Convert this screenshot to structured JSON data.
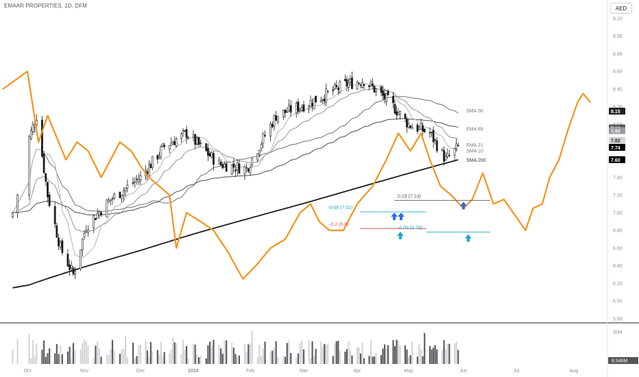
{
  "header": {
    "title": "EMAAR PROPERTIES, 1D, DFM",
    "currency": "AED"
  },
  "volume_scale": {
    "label_top": "50M",
    "label_current": "8.546M"
  },
  "chart_data": {
    "type": "candlestick",
    "symbol": "EMAAR PROPERTIES, 1D, DFM",
    "ylim": [
      5.8,
      9.3
    ],
    "y_ticks": [
      5.8,
      6.0,
      6.2,
      6.4,
      6.6,
      6.8,
      7.0,
      7.2,
      7.4,
      7.6,
      7.8,
      8.0,
      8.2,
      8.4,
      8.6,
      8.8,
      9.0,
      9.2
    ],
    "x_ticks": [
      "Oct",
      "Nov",
      "Dec",
      "2024",
      "Feb",
      "Mar",
      "Apr",
      "May",
      "Jun",
      "Jul",
      "Aug"
    ],
    "price_ohlc_samples": [
      [
        "2023-09-28",
        6.95,
        7.05,
        6.9,
        7.0
      ],
      [
        "2023-10-02",
        7.4,
        7.95,
        7.3,
        7.85
      ],
      [
        "2023-10-06",
        8.0,
        8.3,
        7.9,
        8.1
      ],
      [
        "2023-10-12",
        7.6,
        7.7,
        7.1,
        7.2
      ],
      [
        "2023-10-19",
        6.6,
        6.75,
        6.55,
        6.6
      ],
      [
        "2023-10-26",
        6.4,
        6.5,
        6.22,
        6.3
      ],
      [
        "2023-11-02",
        6.7,
        6.9,
        6.6,
        6.85
      ],
      [
        "2023-11-15",
        7.1,
        7.2,
        7.0,
        7.15
      ],
      [
        "2023-12-01",
        7.2,
        7.45,
        7.1,
        7.4
      ],
      [
        "2023-12-15",
        7.6,
        7.8,
        7.5,
        7.75
      ],
      [
        "2023-12-28",
        7.95,
        8.0,
        7.8,
        7.9
      ],
      [
        "2024-01-15",
        7.6,
        7.7,
        7.5,
        7.55
      ],
      [
        "2024-01-30",
        7.45,
        7.55,
        7.35,
        7.5
      ],
      [
        "2024-02-15",
        8.0,
        8.15,
        7.95,
        8.1
      ],
      [
        "2024-03-05",
        8.2,
        8.3,
        8.1,
        8.25
      ],
      [
        "2024-03-25",
        8.4,
        8.5,
        8.3,
        8.45
      ],
      [
        "2024-04-05",
        8.55,
        8.65,
        8.45,
        8.5
      ],
      [
        "2024-04-20",
        8.3,
        8.38,
        8.2,
        8.25
      ],
      [
        "2024-05-01",
        8.05,
        8.15,
        7.95,
        8.0
      ],
      [
        "2024-05-13",
        7.75,
        8.0,
        7.6,
        7.9
      ],
      [
        "2024-05-22",
        7.9,
        8.05,
        7.55,
        7.6
      ],
      [
        "2024-05-29",
        7.65,
        7.82,
        7.6,
        7.74
      ]
    ],
    "series": [
      {
        "name": "SMA 50",
        "last": 8.15,
        "color": "#7b7b86"
      },
      {
        "name": "EMA 89",
        "last": 7.96,
        "color": "#5a5a62"
      },
      {
        "name": "EMA 21",
        "last": 7.93,
        "color": "#9a9aa3"
      },
      {
        "name": "SMA 10",
        "last": 7.82,
        "color": "#b8b8bf"
      },
      {
        "name": "SMA 200",
        "last": 7.6,
        "color": "#1b1b1b"
      }
    ],
    "projection": {
      "color": "#f7931a",
      "points": [
        [
          "2023-09-26",
          8.4
        ],
        [
          "2023-10-01",
          8.6
        ],
        [
          "2023-10-04",
          8.2
        ],
        [
          "2023-10-07",
          7.8
        ],
        [
          "2023-10-12",
          8.1
        ],
        [
          "2023-10-16",
          7.9
        ],
        [
          "2023-10-22",
          7.6
        ],
        [
          "2023-10-28",
          7.8
        ],
        [
          "2023-11-03",
          7.7
        ],
        [
          "2023-11-10",
          7.4
        ],
        [
          "2023-11-20",
          7.8
        ],
        [
          "2023-11-26",
          7.7
        ],
        [
          "2023-12-02",
          7.5
        ],
        [
          "2023-12-06",
          7.4
        ],
        [
          "2023-12-12",
          7.3
        ],
        [
          "2023-12-18",
          7.2
        ],
        [
          "2023-12-22",
          6.6
        ],
        [
          "2023-12-28",
          7.0
        ],
        [
          "2024-01-05",
          6.9
        ],
        [
          "2024-01-12",
          6.8
        ],
        [
          "2024-01-20",
          6.55
        ],
        [
          "2024-01-28",
          6.25
        ],
        [
          "2024-02-04",
          6.4
        ],
        [
          "2024-02-12",
          6.6
        ],
        [
          "2024-02-20",
          6.7
        ],
        [
          "2024-02-28",
          7.0
        ],
        [
          "2024-03-05",
          7.1
        ],
        [
          "2024-03-10",
          6.9
        ],
        [
          "2024-03-16",
          6.8
        ],
        [
          "2024-03-24",
          6.8
        ],
        [
          "2024-04-01",
          7.1
        ],
        [
          "2024-04-10",
          7.3
        ],
        [
          "2024-04-18",
          7.6
        ],
        [
          "2024-04-25",
          7.9
        ],
        [
          "2024-05-02",
          7.7
        ],
        [
          "2024-05-08",
          7.9
        ],
        [
          "2024-05-13",
          7.6
        ],
        [
          "2024-05-19",
          7.3
        ],
        [
          "2024-05-25",
          7.2
        ],
        [
          "2024-06-01",
          7.05
        ],
        [
          "2024-06-06",
          7.15
        ],
        [
          "2024-06-12",
          7.45
        ],
        [
          "2024-06-18",
          7.1
        ],
        [
          "2024-06-24",
          7.15
        ],
        [
          "2024-07-01",
          6.95
        ],
        [
          "2024-07-06",
          6.8
        ],
        [
          "2024-07-10",
          7.05
        ],
        [
          "2024-07-15",
          7.1
        ],
        [
          "2024-07-19",
          7.4
        ],
        [
          "2024-07-24",
          7.6
        ],
        [
          "2024-07-29",
          7.95
        ],
        [
          "2024-08-03",
          8.25
        ],
        [
          "2024-08-06",
          8.35
        ],
        [
          "2024-08-10",
          8.25
        ]
      ]
    },
    "annotations": [
      {
        "text": "0.19 (7.14)",
        "price": 7.14,
        "color": "#555555"
      },
      {
        "text": "-0.09 (7.01)",
        "price": 7.01,
        "color": "#22a8c7"
      },
      {
        "text": "-0.2 (6.8)",
        "price": 6.82,
        "color": "#d9534f"
      },
      {
        "text": "-0.09 (6.78)",
        "price": 6.78,
        "color": "#22a8c7"
      }
    ],
    "price_labels": [
      {
        "text": "8.15",
        "value": 8.15,
        "bg": "#1f1f1f",
        "fg": "#ffffff"
      },
      {
        "text": "7.96",
        "value": 7.96,
        "bg": "#555555",
        "fg": "#ffffff"
      },
      {
        "text": "7.93",
        "value": 7.93,
        "bg": "#9a9aa3",
        "fg": "#ffffff"
      },
      {
        "text": "7.82",
        "value": 7.82,
        "bg": "#d3d3d8",
        "fg": "#222222"
      },
      {
        "text": "7.74",
        "value": 7.74,
        "bg": "#000000",
        "fg": "#ffffff"
      },
      {
        "text": "7.60",
        "value": 7.6,
        "bg": "#000000",
        "fg": "#ffffff"
      }
    ]
  }
}
